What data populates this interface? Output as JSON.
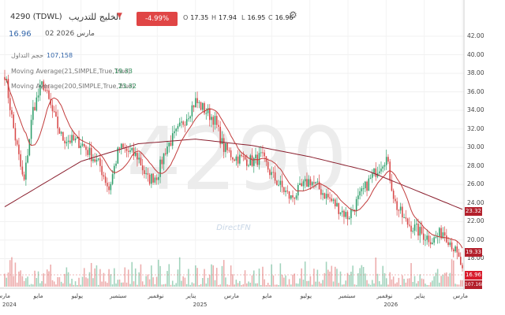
{
  "header": {
    "symbol": "4290 (TDWL)",
    "name": "الخليج للتدريب",
    "change": "-4.99%(-0.89)",
    "date": "02 مارس 2026",
    "last_price": "16.96",
    "ohlc": [
      {
        "label": "O",
        "value": "17.35"
      },
      {
        "label": "H",
        "value": "17.94"
      },
      {
        "label": "L",
        "value": "16.95"
      },
      {
        "label": "C",
        "value": "16.96"
      }
    ]
  },
  "indicators": {
    "volume_label": "حجم التداول",
    "volume_value": "107,158",
    "ma1_label": "Moving Average(21,SIMPLE,True,True)",
    "ma1_value": "19.33",
    "ma2_label": "Moving Average(200,SIMPLE,True,True)",
    "ma2_value": "23.32"
  },
  "watermark": "4290",
  "provider": "DirectFN",
  "price_tags": {
    "ma2": "23.32",
    "ma1": "19.33",
    "last": "16.96",
    "volume": "107.16K"
  },
  "colors": {
    "up": "#2e9e6a",
    "down": "#d84848",
    "ma21": "#c23b3b",
    "ma200": "#8a1f2e",
    "badge": "#e04545"
  },
  "chart_data": {
    "type": "candlestick",
    "ylim": [
      16,
      42
    ],
    "y_ticks": [
      "18.00",
      "20.00",
      "22.00",
      "24.00",
      "26.00",
      "28.00",
      "30.00",
      "32.00",
      "34.00",
      "36.00",
      "38.00",
      "40.00",
      "42.00"
    ],
    "x_ticks": [
      "مارس",
      "مايو",
      "يوليو",
      "سبتمبر",
      "نوفمبر",
      "يناير",
      "مارس",
      "مايو",
      "يوليو",
      "سبتمبر",
      "نوفمبر",
      "يناير",
      "مارس"
    ],
    "x_years": [
      "2024",
      "2025",
      "2026"
    ],
    "price_anchors": [
      {
        "t": "2024-03",
        "close": 38
      },
      {
        "t": "2024-03-15",
        "close": 32
      },
      {
        "t": "2024-04",
        "close": 26
      },
      {
        "t": "2024-04-15",
        "close": 34
      },
      {
        "t": "2024-05",
        "close": 37
      },
      {
        "t": "2024-05-15",
        "close": 34
      },
      {
        "t": "2024-06",
        "close": 31
      },
      {
        "t": "2024-07",
        "close": 30.5
      },
      {
        "t": "2024-08",
        "close": 28
      },
      {
        "t": "2024-08-15",
        "close": 25.5
      },
      {
        "t": "2024-09",
        "close": 30
      },
      {
        "t": "2024-10",
        "close": 29
      },
      {
        "t": "2024-10-15",
        "close": 26.5
      },
      {
        "t": "2024-11",
        "close": 27
      },
      {
        "t": "2024-11-15",
        "close": 30
      },
      {
        "t": "2024-12",
        "close": 31.5
      },
      {
        "t": "2025-01",
        "close": 35
      },
      {
        "t": "2025-02",
        "close": 33
      },
      {
        "t": "2025-02-15",
        "close": 30
      },
      {
        "t": "2025-03",
        "close": 29
      },
      {
        "t": "2025-04",
        "close": 28.5
      },
      {
        "t": "2025-04-15",
        "close": 29
      },
      {
        "t": "2025-05",
        "close": 27
      },
      {
        "t": "2025-06",
        "close": 24.5
      },
      {
        "t": "2025-07",
        "close": 26.5
      },
      {
        "t": "2025-08",
        "close": 24.5
      },
      {
        "t": "2025-09",
        "close": 22.5
      },
      {
        "t": "2025-10",
        "close": 26
      },
      {
        "t": "2025-10-15",
        "close": 27.5
      },
      {
        "t": "2025-11",
        "close": 29
      },
      {
        "t": "2025-11-15",
        "close": 24
      },
      {
        "t": "2025-12",
        "close": 22
      },
      {
        "t": "2026-01",
        "close": 20.5
      },
      {
        "t": "2026-01-15",
        "close": 20
      },
      {
        "t": "2026-02",
        "close": 21
      },
      {
        "t": "2026-02-15",
        "close": 19.5
      },
      {
        "t": "2026-03",
        "close": 16.96
      }
    ],
    "series": [
      {
        "name": "Moving Average(21,SIMPLE,True,True)",
        "last": 19.33
      },
      {
        "name": "Moving Average(200,SIMPLE,True,True)",
        "last": 23.32
      }
    ],
    "ma200_anchors": [
      {
        "t": "2024-03",
        "value": 23.6
      },
      {
        "t": "2024-07",
        "value": 28.5
      },
      {
        "t": "2024-10",
        "value": 30.4
      },
      {
        "t": "2025-01",
        "value": 30.9
      },
      {
        "t": "2025-04",
        "value": 30.2
      },
      {
        "t": "2025-07",
        "value": 29
      },
      {
        "t": "2025-10",
        "value": 27.5
      },
      {
        "t": "2026-01",
        "value": 25
      },
      {
        "t": "2026-03",
        "value": 23.32
      }
    ],
    "volume": {
      "last": 107158
    }
  }
}
